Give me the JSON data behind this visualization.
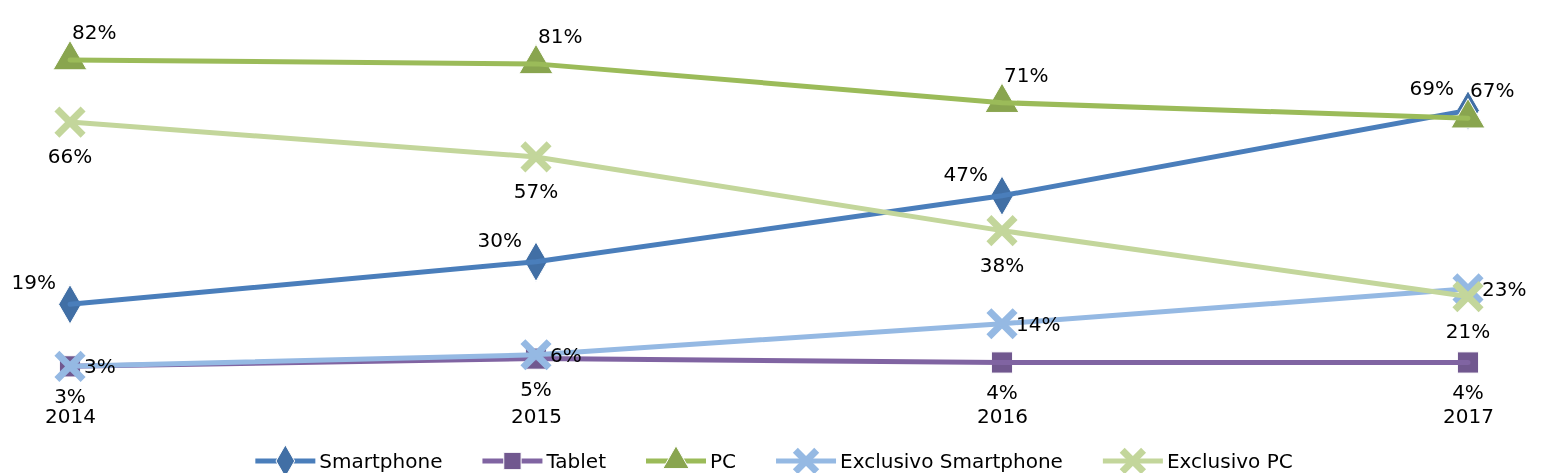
{
  "chart_data": {
    "type": "line",
    "categories": [
      "2014",
      "2015",
      "2016",
      "2017"
    ],
    "legend": "bottom",
    "tick_labels": "x",
    "grid": false,
    "series": [
      {
        "name": "Smartphone",
        "color": "#4a7ebb",
        "marker": "diamond",
        "values": [
          19,
          30,
          47,
          69
        ],
        "value_labels": [
          "19%",
          "30%",
          "47%",
          "69%"
        ]
      },
      {
        "name": "Tablet",
        "color": "#8064a2",
        "marker": "square",
        "values": [
          3,
          5,
          4,
          4
        ],
        "value_labels": [
          "3%",
          "5%",
          "4%",
          "4%"
        ]
      },
      {
        "name": "PC",
        "color": "#9bbb59",
        "marker": "triangle",
        "values": [
          82,
          81,
          71,
          67
        ],
        "value_labels": [
          "82%",
          "81%",
          "71%",
          "67%"
        ]
      },
      {
        "name": "Exclusivo Smartphone",
        "color": "#95b9e3",
        "marker": "cross",
        "values": [
          3,
          6,
          14,
          23
        ],
        "value_labels": [
          "3%",
          "6%",
          "14%",
          "23%"
        ]
      },
      {
        "name": "Exclusivo PC",
        "color": "#c3d69b",
        "marker": "cross",
        "values": [
          66,
          57,
          38,
          21
        ],
        "value_labels": [
          "66%",
          "57%",
          "38%",
          "21%"
        ]
      }
    ]
  }
}
